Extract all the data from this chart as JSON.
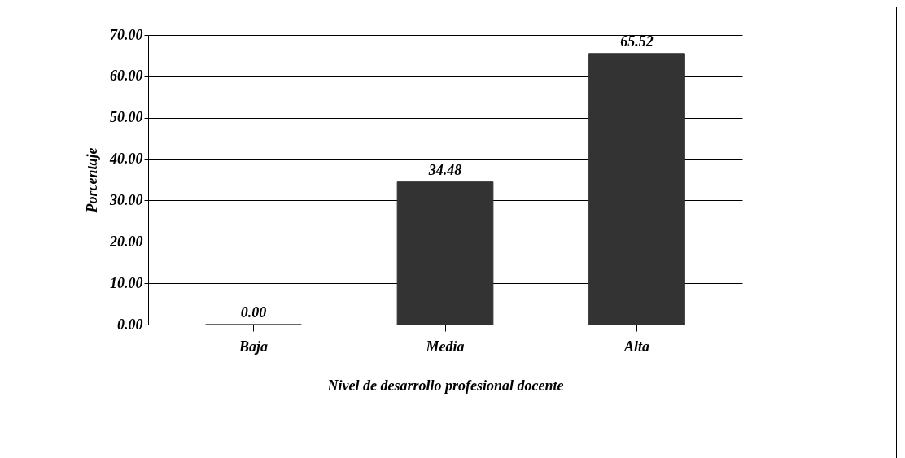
{
  "chart_data": {
    "type": "bar",
    "xlabel": "Nivel de desarrollo profesional docente",
    "ylabel": "Porcentaje",
    "categories": [
      "Baja",
      "Media",
      "Alta"
    ],
    "values": [
      0,
      34.48,
      65.52
    ],
    "value_labels": [
      "0.00",
      "34.48",
      "65.52"
    ],
    "color": "#333333",
    "ylim": [
      0,
      70
    ],
    "yticks": [
      {
        "value": 0,
        "label": "0.00"
      },
      {
        "value": 10,
        "label": "10.00"
      },
      {
        "value": 20,
        "label": "20.00"
      },
      {
        "value": 30,
        "label": "30.00"
      },
      {
        "value": 40,
        "label": "40.00"
      },
      {
        "value": 50,
        "label": "50.00"
      },
      {
        "value": 60,
        "label": "60.00"
      },
      {
        "value": 70,
        "label": "70.00"
      }
    ],
    "grid": "y"
  }
}
